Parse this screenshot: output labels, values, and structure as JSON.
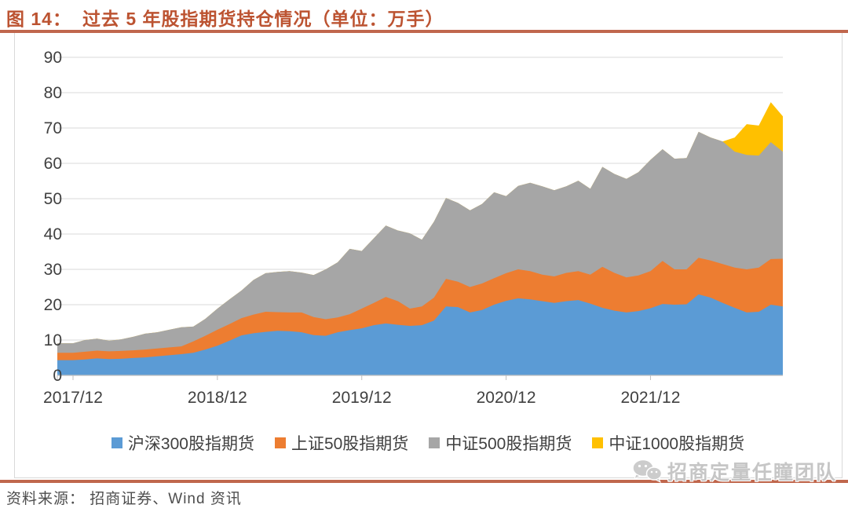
{
  "title": {
    "figure_label": "图 14：",
    "figure_title": "过去 5 年股指期货持仓情况（单位：万手）"
  },
  "source_note": "资料来源： 招商证券、Wind 资讯",
  "watermark": {
    "icon": "wechat-icon",
    "text": "招商定量任瞳团队"
  },
  "colors": {
    "title_accent": "#BC5331",
    "rule_accent": "#C0674D",
    "gridline": "#D9D9D9",
    "axis": "#BFBFBF",
    "tick_label": "#404040",
    "watermark_gray": "#c6c6c6"
  },
  "chart_data": {
    "type": "area",
    "stacked": true,
    "unit": "万手",
    "title": "过去 5 年股指期货持仓情况",
    "ylim": [
      0,
      90
    ],
    "ytick_interval": 10,
    "grid": "horizontal",
    "legend_position": "bottom",
    "xticks": [
      "2017/12",
      "2018/12",
      "2019/12",
      "2020/12",
      "2021/12"
    ],
    "x": [
      "2017/12",
      "2018/01",
      "2018/02",
      "2018/03",
      "2018/04",
      "2018/05",
      "2018/06",
      "2018/07",
      "2018/08",
      "2018/09",
      "2018/10",
      "2018/11",
      "2018/12",
      "2019/01",
      "2019/02",
      "2019/03",
      "2019/04",
      "2019/05",
      "2019/06",
      "2019/07",
      "2019/08",
      "2019/09",
      "2019/10",
      "2019/11",
      "2019/12",
      "2020/01",
      "2020/02",
      "2020/03",
      "2020/04",
      "2020/05",
      "2020/06",
      "2020/07",
      "2020/08",
      "2020/09",
      "2020/10",
      "2020/11",
      "2020/12",
      "2021/01",
      "2021/02",
      "2021/03",
      "2021/04",
      "2021/05",
      "2021/06",
      "2021/07",
      "2021/08",
      "2021/09",
      "2021/10",
      "2021/11",
      "2021/12",
      "2022/01",
      "2022/02",
      "2022/03",
      "2022/04",
      "2022/05",
      "2022/06",
      "2022/07",
      "2022/08",
      "2022/09",
      "2022/10",
      "2022/11"
    ],
    "series": [
      {
        "name": "沪深300股指期货",
        "color": "#5B9BD5",
        "values": [
          4.3,
          4.5,
          4.8,
          4.6,
          4.7,
          4.9,
          5.1,
          5.4,
          5.7,
          6.0,
          6.4,
          7.3,
          8.4,
          9.8,
          11.3,
          11.9,
          12.3,
          12.6,
          12.5,
          12.2,
          11.4,
          11.2,
          12.2,
          12.8,
          13.3,
          14.2,
          14.7,
          14.3,
          14.0,
          14.2,
          15.5,
          19.5,
          19.3,
          17.8,
          18.5,
          20.0,
          21.1,
          21.8,
          21.5,
          21.0,
          20.5,
          21.0,
          21.3,
          20.3,
          19.1,
          18.3,
          17.8,
          18.2,
          19.0,
          20.2,
          20.0,
          20.1,
          22.9,
          22.0,
          20.5,
          19.1,
          17.8,
          18.0,
          20.0,
          19.5
        ]
      },
      {
        "name": "上证50股指期货",
        "color": "#ED7D31",
        "values": [
          2.1,
          2.2,
          2.2,
          2.2,
          2.2,
          2.2,
          2.2,
          2.2,
          2.2,
          2.2,
          3.2,
          3.9,
          4.5,
          4.7,
          4.9,
          5.3,
          5.7,
          5.3,
          5.3,
          5.6,
          5.1,
          4.7,
          4.2,
          4.5,
          5.6,
          6.3,
          7.5,
          6.7,
          4.9,
          5.3,
          6.5,
          7.8,
          7.2,
          7.2,
          7.5,
          7.5,
          7.8,
          8.2,
          8.0,
          7.5,
          7.5,
          8.0,
          8.2,
          8.2,
          11.6,
          10.7,
          9.9,
          10.1,
          10.5,
          12.2,
          10.0,
          9.9,
          10.4,
          10.5,
          11.0,
          11.4,
          12.2,
          12.5,
          12.9,
          13.5
        ]
      },
      {
        "name": "中证500股指期货",
        "color": "#A6A6A6",
        "values": [
          2.7,
          3.3,
          3.4,
          3.0,
          3.3,
          3.8,
          4.5,
          4.6,
          5.0,
          5.4,
          4.2,
          4.8,
          6.0,
          7.0,
          7.8,
          9.8,
          10.9,
          11.4,
          11.7,
          11.3,
          11.9,
          14.1,
          15.6,
          18.5,
          16.3,
          18.3,
          20.2,
          20.0,
          21.3,
          18.9,
          21.5,
          22.9,
          22.3,
          21.7,
          22.5,
          24.3,
          21.8,
          23.6,
          25.0,
          25.0,
          24.4,
          24.5,
          25.6,
          24.3,
          28.3,
          28.0,
          27.9,
          29.2,
          31.5,
          31.6,
          31.3,
          31.5,
          35.6,
          34.8,
          34.7,
          32.8,
          32.4,
          31.7,
          33.1,
          30.3
        ]
      },
      {
        "name": "中证1000股指期货",
        "color": "#FFC000",
        "values": [
          0,
          0,
          0,
          0,
          0,
          0,
          0,
          0,
          0,
          0,
          0,
          0,
          0,
          0,
          0,
          0,
          0,
          0,
          0,
          0,
          0,
          0,
          0,
          0,
          0,
          0,
          0,
          0,
          0,
          0,
          0,
          0,
          0,
          0,
          0,
          0,
          0,
          0,
          0,
          0,
          0,
          0,
          0,
          0,
          0,
          0,
          0,
          0,
          0,
          0,
          0,
          0,
          0,
          0,
          0,
          4.0,
          8.7,
          8.5,
          11.3,
          10.0
        ]
      }
    ]
  }
}
